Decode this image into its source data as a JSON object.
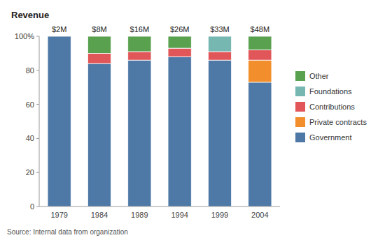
{
  "chart_data": {
    "type": "bar",
    "stacked": true,
    "title": "Revenue",
    "source": "Source: Internal data from organization",
    "categories": [
      "1979",
      "1984",
      "1989",
      "1994",
      "1999",
      "2004"
    ],
    "annotations": [
      "$2M",
      "$8M",
      "$16M",
      "$26M",
      "$33M",
      "$48M"
    ],
    "series": [
      {
        "name": "Government",
        "color": "#4e79a7",
        "values": [
          100,
          84,
          86,
          88,
          86,
          73
        ]
      },
      {
        "name": "Private contracts",
        "color": "#f28e2b",
        "values": [
          0,
          0,
          0,
          0,
          0,
          13
        ]
      },
      {
        "name": "Contributions",
        "color": "#e15759",
        "values": [
          0,
          6,
          5,
          5,
          5,
          6
        ]
      },
      {
        "name": "Foundations",
        "color": "#76b7b2",
        "values": [
          0,
          0,
          0,
          0,
          9,
          0
        ]
      },
      {
        "name": "Other",
        "color": "#59a14f",
        "values": [
          0,
          10,
          9,
          7,
          0,
          8
        ]
      }
    ],
    "ylim": [
      0,
      100
    ],
    "yticks": [
      0,
      20,
      40,
      60,
      80,
      {
        "value": 100,
        "label": "100%"
      }
    ],
    "grid": false,
    "legend": "right"
  }
}
